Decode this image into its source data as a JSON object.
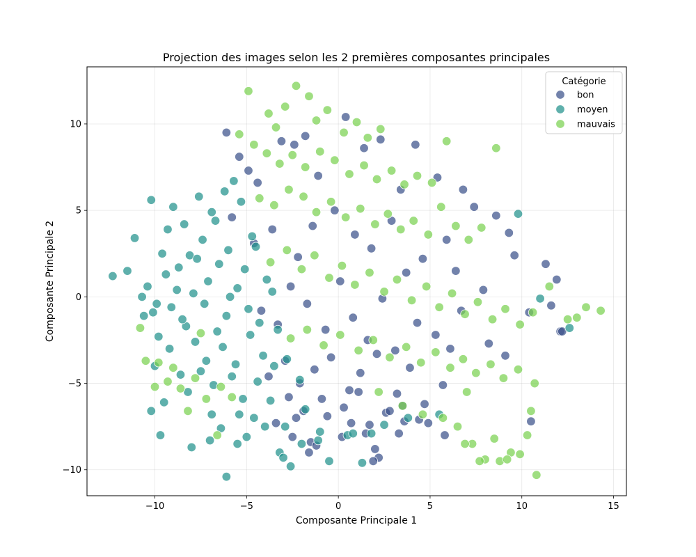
{
  "chart_data": {
    "type": "scatter",
    "title": "Projection des images selon les 2 premières composantes principales",
    "xlabel": "Composante Principale 1",
    "ylabel": "Composante Principale 2",
    "xlim": [
      -13.7,
      15.7
    ],
    "ylim": [
      -11.5,
      13.3
    ],
    "xticks": [
      -10,
      -5,
      0,
      5,
      10,
      15
    ],
    "yticks": [
      -10,
      -5,
      0,
      5,
      10
    ],
    "xtick_labels": [
      "−10",
      "−5",
      "0",
      "5",
      "10",
      "15"
    ],
    "ytick_labels": [
      "−10",
      "−5",
      "0",
      "5",
      "10"
    ],
    "grid": true,
    "legend": {
      "title": "Catégorie",
      "placement": "top-right"
    },
    "series": [
      {
        "name": "bon",
        "color": "#3b528b",
        "x": [
          -6.1,
          -5.4,
          -4.9,
          -4.4,
          -3.1,
          -2.4,
          -1.8,
          -1.1,
          0.4,
          1.4,
          2.3,
          3.4,
          4.2,
          5.4,
          6.8,
          7.4,
          8.6,
          9.3,
          11.3,
          11.9,
          -5.8,
          -4.6,
          -3.6,
          -2.2,
          -1.4,
          -0.2,
          0.9,
          1.8,
          2.9,
          3.7,
          4.6,
          5.9,
          6.4,
          7.9,
          9.6,
          10.4,
          11.6,
          12.1,
          -4.2,
          -3.3,
          -2.6,
          -1.7,
          -0.7,
          0.1,
          0.8,
          1.6,
          2.4,
          3.1,
          4.3,
          5.3,
          6.1,
          6.7,
          8.2,
          9.1,
          -3.8,
          -2.9,
          -2.1,
          -1.3,
          -0.4,
          0.6,
          1.2,
          2.1,
          3.2,
          3.9,
          4.7,
          5.7,
          -2.7,
          -1.9,
          -0.9,
          0.3,
          1.1,
          2.6,
          3.5,
          4.4,
          -3.4,
          -2.3,
          -1.5,
          -0.6,
          0.7,
          1.7,
          2.8,
          3.6,
          -2.5,
          -1.2,
          0.2,
          1.5,
          2.2,
          3.3,
          4.9,
          5.8,
          10.5,
          12.2,
          -1.6,
          1.9,
          2.0
        ],
        "y": [
          9.5,
          8.1,
          7.3,
          6.6,
          9.0,
          8.8,
          9.3,
          7.0,
          10.4,
          8.6,
          9.1,
          6.2,
          8.8,
          6.9,
          6.2,
          5.2,
          4.7,
          3.7,
          1.9,
          1.0,
          4.6,
          3.1,
          3.9,
          2.3,
          4.1,
          5.0,
          3.6,
          2.8,
          4.4,
          1.4,
          2.2,
          3.3,
          1.5,
          0.4,
          2.4,
          -0.9,
          -0.5,
          -2.0,
          -0.8,
          -1.6,
          0.6,
          -0.4,
          -1.9,
          0.9,
          -1.2,
          -2.5,
          -0.1,
          -3.1,
          -1.5,
          -2.2,
          -3.0,
          -0.8,
          -2.7,
          -3.4,
          -4.6,
          -3.7,
          -5.0,
          -4.2,
          -3.5,
          -5.4,
          -4.4,
          -3.3,
          -5.6,
          -4.1,
          -6.2,
          -5.1,
          -5.8,
          -6.6,
          -5.9,
          -6.4,
          -5.5,
          -6.7,
          -6.3,
          -7.1,
          -7.3,
          -7.0,
          -8.4,
          -6.9,
          -7.3,
          -7.4,
          -6.6,
          -7.2,
          -8.1,
          -8.6,
          -8.1,
          -7.9,
          -9.3,
          -7.9,
          -7.3,
          -8.0,
          -7.2,
          -2.0,
          -9.0,
          -9.5,
          -8.8
        ]
      },
      {
        "name": "moyen",
        "color": "#21918c",
        "x": [
          -12.3,
          -11.5,
          -11.1,
          -10.7,
          -10.2,
          -9.6,
          -9.0,
          -8.4,
          -7.6,
          -6.9,
          -6.2,
          -5.7,
          -10.4,
          -9.9,
          -9.3,
          -8.7,
          -8.1,
          -7.4,
          -6.7,
          -6.0,
          -5.3,
          -4.7,
          -10.6,
          -10.1,
          -9.4,
          -8.8,
          -8.3,
          -7.7,
          -7.1,
          -6.5,
          -5.9,
          -5.1,
          -4.5,
          -3.9,
          -9.8,
          -9.1,
          -8.5,
          -7.9,
          -7.3,
          -6.6,
          -6.1,
          -5.5,
          -4.9,
          -4.3,
          -3.6,
          -10.0,
          -9.2,
          -8.6,
          -7.8,
          -7.2,
          -6.3,
          -5.6,
          -4.8,
          -4.1,
          -3.3,
          -9.5,
          -8.2,
          -7.5,
          -6.8,
          -5.8,
          -5.2,
          -4.4,
          -3.5,
          -2.8,
          -2.1,
          -7.0,
          -6.4,
          -5.4,
          -4.6,
          -3.7,
          -2.9,
          -1.8,
          -1.0,
          -5.0,
          -3.2,
          -2.0,
          -0.5,
          0.5,
          1.3,
          2.5,
          3.8,
          5.5,
          9.8,
          12.6,
          11.0,
          -10.2,
          -9.7,
          -6.1,
          -5.5,
          -3.0,
          -2.6,
          -1.1,
          0.8,
          1.8,
          -8.0,
          -6.9,
          -4.0
        ],
        "y": [
          1.2,
          1.5,
          3.4,
          0.0,
          5.6,
          2.5,
          5.2,
          4.2,
          5.8,
          4.9,
          6.1,
          6.7,
          0.6,
          -0.4,
          3.9,
          1.7,
          2.4,
          3.3,
          4.4,
          2.7,
          5.5,
          3.5,
          -1.1,
          -0.9,
          1.3,
          0.4,
          -1.7,
          2.2,
          0.9,
          1.9,
          0.0,
          1.6,
          2.9,
          1.0,
          -2.3,
          -0.6,
          -1.3,
          0.2,
          -0.4,
          -2.0,
          -1.1,
          0.5,
          -0.7,
          -1.5,
          0.3,
          -4.0,
          -3.0,
          -4.5,
          -2.6,
          -3.7,
          -2.9,
          -3.9,
          -2.2,
          -3.4,
          -1.9,
          -6.1,
          -5.5,
          -4.3,
          -5.1,
          -4.6,
          -5.9,
          -4.9,
          -4.0,
          -3.6,
          -4.8,
          -8.3,
          -7.6,
          -6.8,
          -7.0,
          -6.0,
          -7.5,
          -6.5,
          -7.8,
          -8.1,
          -9.0,
          -8.5,
          -9.5,
          -8.0,
          -9.6,
          -7.4,
          -7.0,
          -6.8,
          4.8,
          -1.8,
          -0.1,
          -6.6,
          -8.0,
          -10.4,
          -8.5,
          -9.3,
          -9.8,
          -8.3,
          -7.9,
          -7.9,
          -8.7,
          -6.8,
          -7.5
        ]
      },
      {
        "name": "mauvais",
        "color": "#7ad151",
        "x": [
          -4.9,
          -3.8,
          -3.4,
          -2.9,
          -2.3,
          -1.6,
          -1.2,
          -0.6,
          0.3,
          1.0,
          1.6,
          2.3,
          -5.4,
          -4.6,
          -3.9,
          -3.2,
          -2.5,
          -1.8,
          -1.0,
          -0.2,
          0.6,
          1.4,
          2.1,
          2.9,
          3.6,
          4.3,
          5.1,
          5.9,
          -4.3,
          -3.5,
          -2.7,
          -1.9,
          -1.2,
          -0.4,
          0.4,
          1.2,
          2.0,
          2.7,
          3.4,
          4.1,
          4.9,
          5.6,
          6.4,
          7.1,
          7.8,
          8.6,
          -3.7,
          -2.8,
          -2.0,
          -1.3,
          -0.5,
          0.2,
          0.9,
          1.7,
          2.5,
          3.2,
          4.0,
          4.8,
          5.5,
          6.2,
          6.9,
          7.6,
          8.4,
          9.1,
          9.9,
          10.6,
          -2.6,
          -1.7,
          -0.8,
          0.1,
          1.1,
          1.9,
          2.8,
          3.7,
          4.5,
          5.3,
          6.1,
          6.8,
          7.5,
          8.3,
          9.0,
          9.8,
          10.7,
          11.5,
          -10.8,
          -10.5,
          -10.0,
          -9.3,
          -8.6,
          -7.8,
          -7.2,
          -6.4,
          -9.8,
          -9.0,
          -8.2,
          -7.5,
          -6.6,
          -5.8,
          2.2,
          3.5,
          4.6,
          5.7,
          6.5,
          7.3,
          8.0,
          8.8,
          9.4,
          10.3,
          7.7,
          8.5,
          9.2,
          9.9,
          10.5,
          6.9,
          7.0,
          12.5,
          13.0,
          13.5,
          14.3,
          10.8
        ],
        "y": [
          11.9,
          10.6,
          9.8,
          11.0,
          12.2,
          11.6,
          10.2,
          10.8,
          9.5,
          10.1,
          9.2,
          9.7,
          9.4,
          8.8,
          8.3,
          7.7,
          8.2,
          7.5,
          8.4,
          7.9,
          7.1,
          7.6,
          6.8,
          7.3,
          6.5,
          7.0,
          6.6,
          9.0,
          5.7,
          5.3,
          6.2,
          5.8,
          4.9,
          5.5,
          4.6,
          5.1,
          4.2,
          4.8,
          3.9,
          4.4,
          3.6,
          5.2,
          4.1,
          3.3,
          4.0,
          8.6,
          2.0,
          2.7,
          1.6,
          2.4,
          1.1,
          1.8,
          0.7,
          1.4,
          0.3,
          1.0,
          -0.2,
          0.6,
          -0.6,
          0.2,
          -1.0,
          -0.3,
          -1.3,
          -0.7,
          -1.6,
          -0.9,
          -2.4,
          -1.9,
          -2.8,
          -2.2,
          -3.1,
          -2.5,
          -3.5,
          -2.9,
          -3.8,
          -3.2,
          -4.1,
          -3.6,
          -4.4,
          -3.9,
          -4.7,
          -4.2,
          -5.0,
          0.6,
          -1.8,
          -3.7,
          -5.2,
          -4.9,
          -5.3,
          -4.7,
          -5.9,
          -5.2,
          -3.8,
          -4.1,
          -6.6,
          -2.1,
          -8.0,
          -5.8,
          -5.5,
          -6.3,
          -6.8,
          -7.0,
          -7.5,
          -8.5,
          -9.4,
          -9.5,
          -9.0,
          -8.0,
          -9.5,
          -8.2,
          -9.4,
          -9.1,
          -6.6,
          -8.5,
          -5.5,
          -1.3,
          -1.2,
          -0.6,
          -0.8,
          -10.3
        ]
      }
    ]
  }
}
